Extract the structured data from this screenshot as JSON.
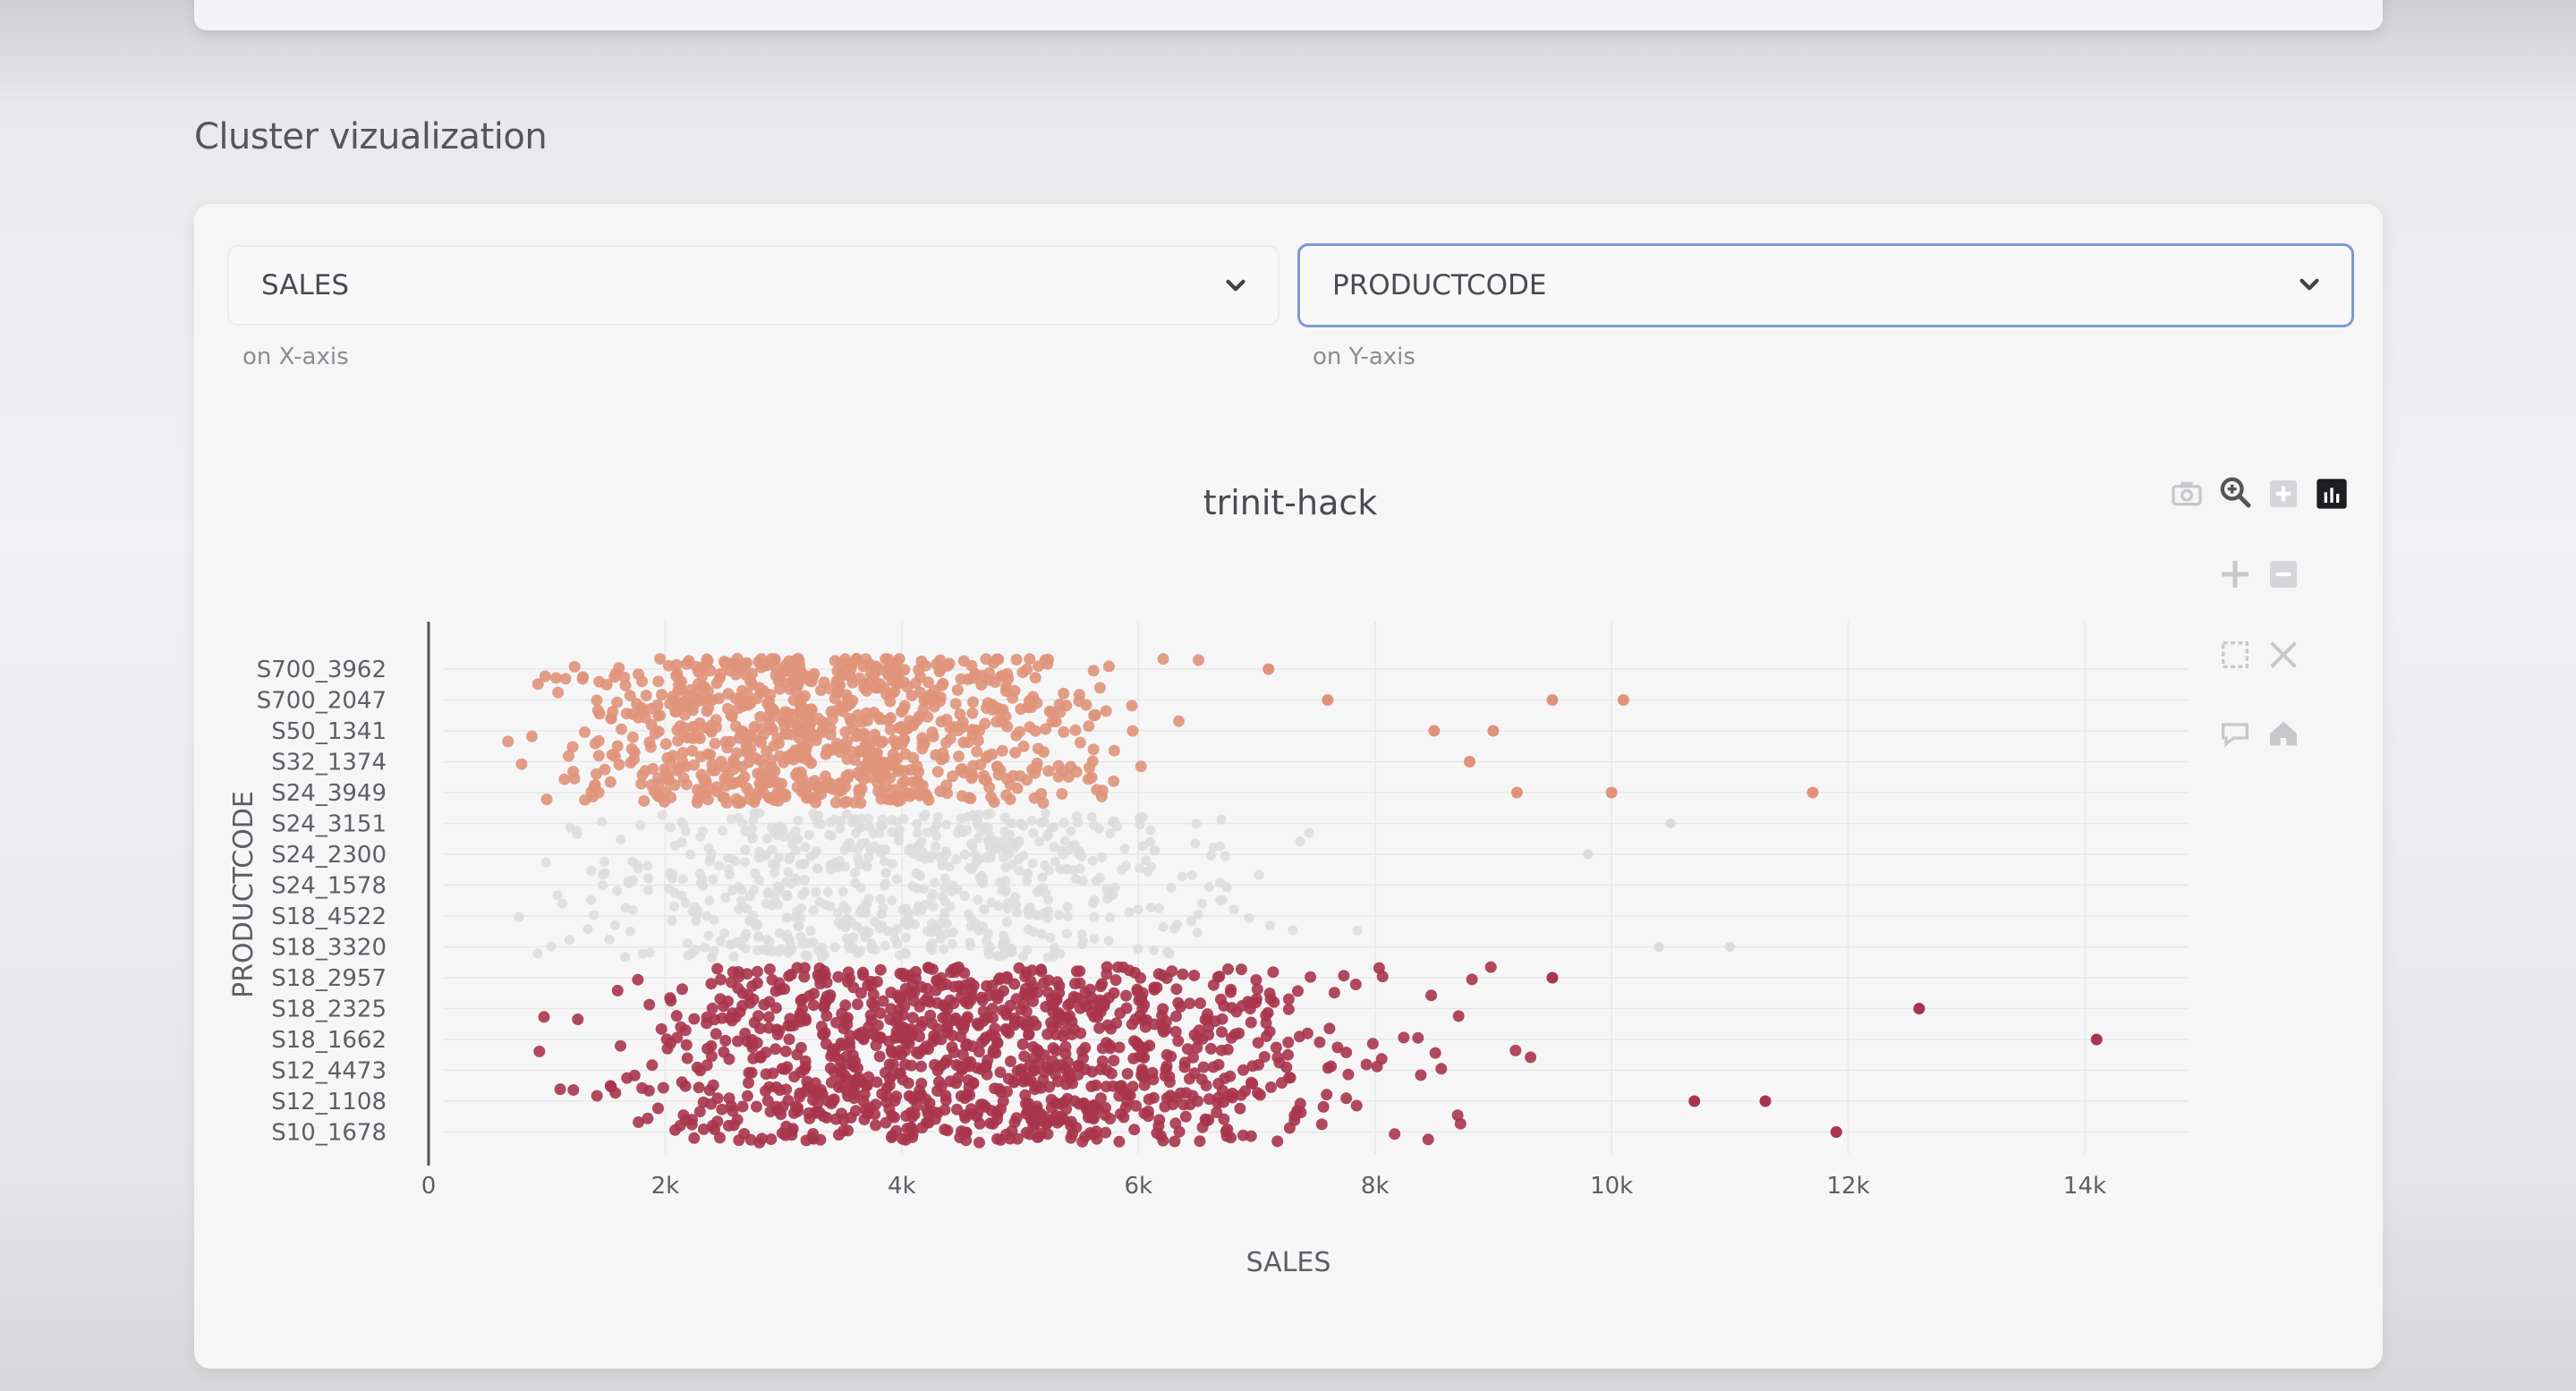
{
  "section": {
    "title": "Cluster vizualization"
  },
  "controls": {
    "x_select": {
      "value": "SALES",
      "hint": "on X-axis"
    },
    "y_select": {
      "value": "PRODUCTCODE",
      "hint": "on Y-axis"
    }
  },
  "modebar": {
    "icons": [
      "camera-icon",
      "zoom-icon",
      "zoom-in-icon",
      "plotly-logo-icon",
      "pan-icon",
      "zoom-out-icon",
      "box-select-icon",
      "autoscale-icon",
      "hover-compare-icon",
      "home-icon"
    ]
  },
  "chart_data": {
    "type": "scatter",
    "title": "trinit-hack",
    "xlabel": "SALES",
    "ylabel": "PRODUCTCODE",
    "xlim": [
      0,
      14800
    ],
    "x_ticks": [
      0,
      2000,
      4000,
      6000,
      8000,
      10000,
      12000,
      14000
    ],
    "x_tick_labels": [
      "0",
      "2k",
      "4k",
      "6k",
      "8k",
      "10k",
      "12k",
      "14k"
    ],
    "y_categories_top_to_bottom": [
      "S700_3962",
      "S700_2047",
      "S50_1341",
      "S32_1374",
      "S24_3949",
      "S24_3151",
      "S24_2300",
      "S24_1578",
      "S18_4522",
      "S18_3320",
      "S18_2957",
      "S18_2325",
      "S18_1662",
      "S12_4473",
      "S12_1108",
      "S10_1678"
    ],
    "grid": true,
    "legend": "none",
    "series": [
      {
        "color": "#e0937a",
        "y_band": [
          "S24_3949",
          "S700_3962"
        ],
        "x_range": [
          450,
          11800
        ],
        "outliers": [
          [
            7100,
            "S700_3962"
          ],
          [
            7600,
            "S700_2047"
          ],
          [
            9500,
            "S700_2047"
          ],
          [
            10100,
            "S700_2047"
          ],
          [
            8500,
            "S50_1341"
          ],
          [
            9000,
            "S50_1341"
          ],
          [
            8800,
            "S32_1374"
          ],
          [
            10000,
            "S24_3949"
          ],
          [
            9200,
            "S24_3949"
          ],
          [
            11700,
            "S24_3949"
          ]
        ]
      },
      {
        "color": "#dcdcdc",
        "y_band": [
          "S18_3320",
          "S24_3151"
        ],
        "x_range": [
          500,
          11000
        ],
        "outliers": [
          [
            10500,
            "S24_3151"
          ],
          [
            9800,
            "S24_2300"
          ],
          [
            10400,
            "S18_3320"
          ],
          [
            11000,
            "S18_3320"
          ]
        ]
      },
      {
        "color": "#a8354d",
        "y_band": [
          "S10_1678",
          "S18_2957"
        ],
        "x_range": [
          700,
          14200
        ],
        "outliers": [
          [
            12600,
            "S18_2325"
          ],
          [
            14100,
            "S18_1662"
          ],
          [
            11300,
            "S12_1108"
          ],
          [
            11900,
            "S10_1678"
          ],
          [
            10700,
            "S12_1108"
          ],
          [
            9500,
            "S18_2957"
          ]
        ]
      }
    ]
  }
}
